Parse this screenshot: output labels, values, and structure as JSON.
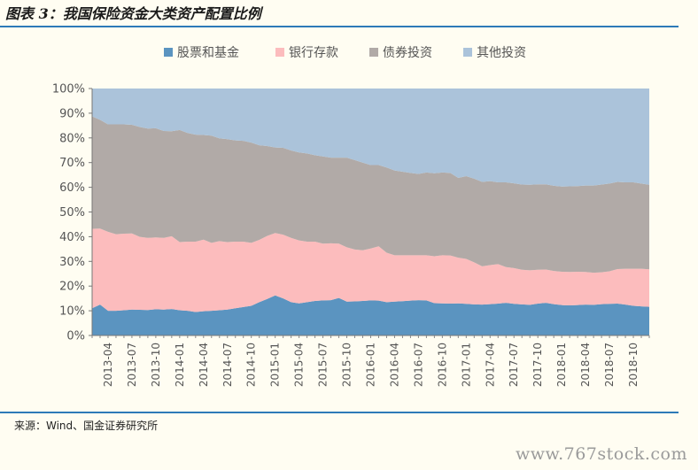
{
  "title": "图表 3：我国保险资金大类资产配置比例",
  "source": "来源：Wind、国金证券研究所",
  "watermark": "www.767stock.com",
  "chart_data": {
    "type": "area",
    "stacked": true,
    "title": "",
    "xlabel": "",
    "ylabel": "",
    "ylim": [
      0,
      100
    ],
    "y_tick_labels": [
      "0%",
      "10%",
      "20%",
      "30%",
      "40%",
      "50%",
      "60%",
      "70%",
      "80%",
      "90%",
      "100%"
    ],
    "x_tick_labels": [
      "2013-04",
      "2013-07",
      "2013-10",
      "2014-01",
      "2014-04",
      "2014-07",
      "2014-10",
      "2015-01",
      "2015-04",
      "2015-07",
      "2015-10",
      "2016-01",
      "2016-04",
      "2016-07",
      "2016-10",
      "2017-01",
      "2017-04",
      "2017-07",
      "2017-10",
      "2018-01",
      "2018-04",
      "2018-07",
      "2018-10"
    ],
    "legend_position": "top",
    "grid": false,
    "x": [
      "2013-02",
      "2013-03",
      "2013-04",
      "2013-05",
      "2013-06",
      "2013-07",
      "2013-08",
      "2013-09",
      "2013-10",
      "2013-11",
      "2013-12",
      "2014-01",
      "2014-02",
      "2014-03",
      "2014-04",
      "2014-05",
      "2014-06",
      "2014-07",
      "2014-08",
      "2014-09",
      "2014-10",
      "2014-11",
      "2014-12",
      "2015-01",
      "2015-02",
      "2015-03",
      "2015-04",
      "2015-05",
      "2015-06",
      "2015-07",
      "2015-08",
      "2015-09",
      "2015-10",
      "2015-11",
      "2015-12",
      "2016-01",
      "2016-02",
      "2016-03",
      "2016-04",
      "2016-05",
      "2016-06",
      "2016-07",
      "2016-08",
      "2016-09",
      "2016-10",
      "2016-11",
      "2016-12",
      "2017-01",
      "2017-02",
      "2017-03",
      "2017-04",
      "2017-05",
      "2017-06",
      "2017-07",
      "2017-08",
      "2017-09",
      "2017-10",
      "2017-11",
      "2017-12",
      "2018-01",
      "2018-02",
      "2018-03",
      "2018-04",
      "2018-05",
      "2018-06",
      "2018-07",
      "2018-08",
      "2018-09",
      "2018-10",
      "2018-11",
      "2018-12"
    ],
    "series": [
      {
        "name": "股票和基金",
        "color": "#5b94c0",
        "values": [
          11.0,
          12.5,
          10.0,
          10.0,
          10.2,
          10.5,
          10.4,
          10.3,
          10.6,
          10.5,
          10.7,
          10.2,
          10.0,
          9.5,
          9.8,
          10.0,
          10.2,
          10.5,
          11.0,
          11.5,
          12.0,
          13.5,
          14.8,
          16.2,
          15.0,
          13.5,
          13.0,
          13.5,
          14.0,
          14.2,
          14.3,
          15.2,
          13.7,
          13.8,
          14.0,
          14.2,
          14.1,
          13.5,
          13.7,
          13.9,
          14.1,
          14.3,
          14.2,
          13.1,
          13.0,
          12.9,
          13.0,
          12.8,
          12.6,
          12.5,
          12.7,
          12.9,
          13.2,
          12.8,
          12.6,
          12.4,
          12.9,
          13.2,
          12.7,
          12.3,
          12.2,
          12.3,
          12.5,
          12.4,
          12.7,
          12.8,
          12.9,
          12.5,
          12.0,
          11.8,
          11.6
        ]
      },
      {
        "name": "银行存款",
        "color": "#fcbcbd",
        "values": [
          32.2,
          30.8,
          32.0,
          31.0,
          31.0,
          30.8,
          29.5,
          29.2,
          29.1,
          29.0,
          29.5,
          27.6,
          28.0,
          28.5,
          29.0,
          27.5,
          28.0,
          27.3,
          27.0,
          26.5,
          25.5,
          25.2,
          25.5,
          25.3,
          25.8,
          26.0,
          25.5,
          24.5,
          24.0,
          23.0,
          23.0,
          22.0,
          22.0,
          21.0,
          20.5,
          21.0,
          22.0,
          20.0,
          18.8,
          18.6,
          18.4,
          18.2,
          18.3,
          19.0,
          19.5,
          19.5,
          18.5,
          18.2,
          17.0,
          15.5,
          15.8,
          16.0,
          14.5,
          14.5,
          14.0,
          14.0,
          13.7,
          13.5,
          13.4,
          13.5,
          13.5,
          13.5,
          13.2,
          13.0,
          12.9,
          13.2,
          14.0,
          14.5,
          15.0,
          15.2,
          15.2
        ]
      },
      {
        "name": "债券投资",
        "color": "#b1aaa7",
        "values": [
          45.5,
          44.0,
          43.5,
          44.5,
          44.3,
          44.0,
          44.5,
          44.3,
          44.2,
          43.3,
          42.5,
          45.4,
          44.0,
          43.3,
          42.4,
          43.4,
          41.6,
          41.7,
          41.0,
          40.8,
          40.6,
          38.3,
          36.4,
          34.6,
          35.2,
          35.4,
          35.6,
          35.7,
          35.0,
          35.3,
          34.7,
          34.8,
          36.3,
          36.2,
          35.5,
          33.8,
          32.9,
          34.5,
          34.3,
          33.8,
          33.3,
          32.9,
          33.5,
          33.6,
          33.5,
          33.4,
          32.3,
          33.5,
          33.9,
          34.2,
          34.0,
          33.1,
          34.3,
          34.3,
          34.5,
          34.6,
          34.6,
          34.5,
          34.5,
          34.5,
          34.7,
          34.7,
          35.0,
          35.3,
          35.5,
          35.5,
          35.3,
          35.0,
          35.0,
          34.5,
          34.2
        ]
      },
      {
        "name": "其他投资",
        "color": "#abc3da",
        "values": [
          11.3,
          12.7,
          14.5,
          14.5,
          14.5,
          14.7,
          15.6,
          16.2,
          16.1,
          17.2,
          17.3,
          16.8,
          18.0,
          18.7,
          18.8,
          19.1,
          20.2,
          20.5,
          21.0,
          21.2,
          21.9,
          23.0,
          23.3,
          23.9,
          24.0,
          25.1,
          25.9,
          26.3,
          27.0,
          27.5,
          28.0,
          28.0,
          28.0,
          29.0,
          30.0,
          31.0,
          31.0,
          32.0,
          33.2,
          33.7,
          34.2,
          34.6,
          34.0,
          34.3,
          34.0,
          34.2,
          36.2,
          35.5,
          36.5,
          37.8,
          37.5,
          38.0,
          38.0,
          38.4,
          38.9,
          39.0,
          38.8,
          38.8,
          39.4,
          39.7,
          39.6,
          39.5,
          39.3,
          39.3,
          38.9,
          38.5,
          37.8,
          38.0,
          38.0,
          38.5,
          39.0
        ]
      }
    ]
  }
}
